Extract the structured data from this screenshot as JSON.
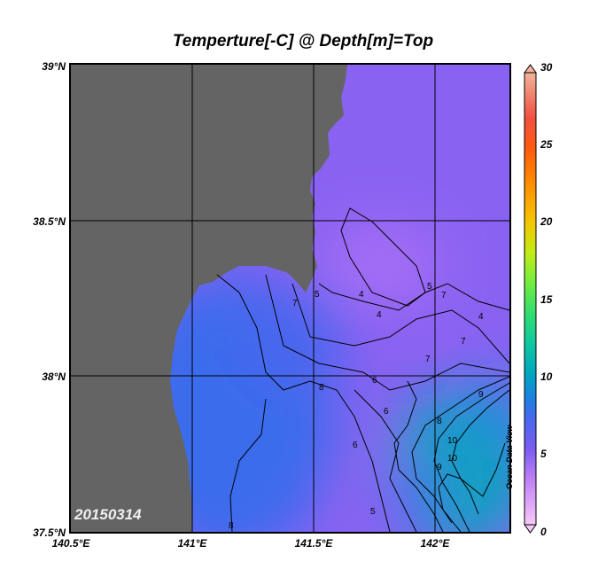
{
  "title": "Temperture[-C] @ Depth[m]=Top",
  "date_stamp": "20150314",
  "watermark": "Ocean Data View",
  "axes": {
    "lat_ticks": [
      "39°N",
      "38.5°N",
      "38°N",
      "37.5°N"
    ],
    "lon_ticks": [
      "140.5°E",
      "141°E",
      "141.5°E",
      "142°E"
    ]
  },
  "colorbar": {
    "ticks": [
      "30",
      "25",
      "20",
      "15",
      "10",
      "5",
      "0"
    ],
    "range": [
      0,
      30
    ],
    "stops": [
      {
        "v": 0,
        "c": "#f7c9f7"
      },
      {
        "v": 3,
        "c": "#c080f5"
      },
      {
        "v": 5,
        "c": "#7a5cf0"
      },
      {
        "v": 7,
        "c": "#4a68ee"
      },
      {
        "v": 8.5,
        "c": "#1a82e0"
      },
      {
        "v": 10,
        "c": "#00a6be"
      },
      {
        "v": 12,
        "c": "#10c8a0"
      },
      {
        "v": 14,
        "c": "#30dc70"
      },
      {
        "v": 16,
        "c": "#70ec40"
      },
      {
        "v": 18,
        "c": "#c0ec18"
      },
      {
        "v": 20,
        "c": "#f2c800"
      },
      {
        "v": 22.5,
        "c": "#ff9000"
      },
      {
        "v": 25,
        "c": "#ff5a10"
      },
      {
        "v": 27,
        "c": "#f05040"
      },
      {
        "v": 30,
        "c": "#f0b49a"
      }
    ]
  },
  "colors": {
    "land": "#646464",
    "grid": "#000000"
  },
  "contour_labels": [
    "4",
    "4",
    "4",
    "5",
    "5",
    "5",
    "6",
    "6",
    "6",
    "7",
    "7",
    "7",
    "7",
    "8",
    "8",
    "8",
    "9",
    "9",
    "10",
    "10"
  ]
}
